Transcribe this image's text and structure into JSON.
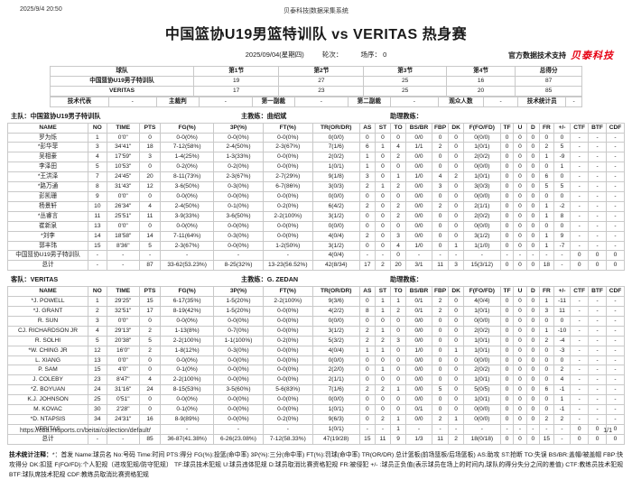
{
  "page": {
    "printed_at": "2025/9/4 20:50",
    "system_title": "贝泰科技|数据采集系统",
    "match_title": "中国篮协U19男篮特训队 vs VERITAS 热身赛",
    "date": "2025/09/04(星期四)",
    "round_label": "轮次：",
    "order_label": "场序： 0",
    "support_label": "官方数据技术支持",
    "brand": "贝泰科技",
    "brand_color": "#e60012",
    "footer_url": "https://cba.misports.cn/beitai/collection/default/",
    "page_num": "1/1"
  },
  "score_table": {
    "headers": [
      "球队",
      "第1节",
      "第2节",
      "第3节",
      "第4节",
      "总得分"
    ],
    "rows": [
      [
        "中国篮协U19男子特训队",
        "19",
        "27",
        "25",
        "16",
        "87"
      ],
      [
        "VERITAS",
        "17",
        "23",
        "25",
        "20",
        "85"
      ]
    ],
    "officials": [
      "技术代表",
      "-",
      "主裁判",
      "-",
      "第一副裁",
      "-",
      "第二副裁",
      "-",
      "观众人数",
      "-",
      "技术统计员",
      "-"
    ]
  },
  "stat_headers": [
    "NAME",
    "NO",
    "TIME",
    "PTS",
    "FG(%)",
    "3P(%)",
    "FT(%)",
    "TR(OR/DR)",
    "AS",
    "ST",
    "TO",
    "BS/BR",
    "FBP",
    "DK",
    "F(FO/FD)",
    "TF",
    "U",
    "D",
    "FR",
    "+/-",
    "CTF",
    "BTF",
    "CDF"
  ],
  "home": {
    "side_label": "主队：",
    "team": "中国篮协U19男子特训队",
    "coach_label": "主教练：",
    "coach": "曲绍斌",
    "assistant_label": "助理教练：",
    "rows": [
      [
        "罗为烁",
        "1",
        "0'0\"",
        "0",
        "0-0(0%)",
        "0-0(0%)",
        "0-0(0%)",
        "0(0/0)",
        "0",
        "0",
        "0",
        "0/0",
        "0",
        "0",
        "0(0/0)",
        "0",
        "0",
        "0",
        "0",
        "0",
        "-",
        "-",
        "-"
      ],
      [
        "*彭华菲",
        "3",
        "34'41\"",
        "18",
        "7-12(58%)",
        "2-4(50%)",
        "2-3(67%)",
        "7(1/6)",
        "6",
        "1",
        "4",
        "1/1",
        "2",
        "0",
        "1(0/1)",
        "0",
        "0",
        "0",
        "2",
        "5",
        "-",
        "-",
        "-"
      ],
      [
        "吴相豪",
        "4",
        "17'59\"",
        "3",
        "1-4(25%)",
        "1-3(33%)",
        "0-0(0%)",
        "2(0/2)",
        "1",
        "0",
        "2",
        "0/0",
        "0",
        "0",
        "2(0/2)",
        "0",
        "0",
        "0",
        "1",
        "-9",
        "-",
        "-",
        "-"
      ],
      [
        "李泽田",
        "5",
        "10'53\"",
        "0",
        "0-2(0%)",
        "0-2(0%)",
        "0-0(0%)",
        "1(0/1)",
        "1",
        "0",
        "0",
        "0/0",
        "0",
        "0",
        "0(0/0)",
        "0",
        "0",
        "0",
        "0",
        "1",
        "-",
        "-",
        "-"
      ],
      [
        "*王洪泽",
        "7",
        "24'45\"",
        "20",
        "8-11(73%)",
        "2-3(67%)",
        "2-7(29%)",
        "9(1/8)",
        "3",
        "0",
        "1",
        "1/0",
        "4",
        "2",
        "1(0/1)",
        "0",
        "0",
        "0",
        "6",
        "0",
        "-",
        "-",
        "-"
      ],
      [
        "*路万通",
        "8",
        "31'43\"",
        "12",
        "3-6(50%)",
        "0-3(0%)",
        "6-7(86%)",
        "3(0/3)",
        "2",
        "1",
        "2",
        "0/0",
        "3",
        "0",
        "3(0/3)",
        "0",
        "0",
        "0",
        "5",
        "5",
        "-",
        "-",
        "-"
      ],
      [
        "彭凯珊",
        "9",
        "0'0\"",
        "0",
        "0-0(0%)",
        "0-0(0%)",
        "0-0(0%)",
        "0(0/0)",
        "0",
        "0",
        "0",
        "0/0",
        "0",
        "0",
        "0(0/0)",
        "0",
        "0",
        "0",
        "0",
        "0",
        "-",
        "-",
        "-"
      ],
      [
        "杨景轩",
        "10",
        "26'34\"",
        "4",
        "2-4(50%)",
        "0-1(0%)",
        "0-2(0%)",
        "6(4/2)",
        "2",
        "0",
        "2",
        "0/0",
        "2",
        "0",
        "2(1/1)",
        "0",
        "0",
        "0",
        "1",
        "-2",
        "-",
        "-",
        "-"
      ],
      [
        "*丛睿言",
        "11",
        "25'51\"",
        "11",
        "3-9(33%)",
        "3-6(50%)",
        "2-2(100%)",
        "3(1/2)",
        "0",
        "0",
        "2",
        "0/0",
        "0",
        "0",
        "2(0/2)",
        "0",
        "0",
        "0",
        "1",
        "8",
        "-",
        "-",
        "-"
      ],
      [
        "崔新泉",
        "13",
        "0'0\"",
        "0",
        "0-0(0%)",
        "0-0(0%)",
        "0-0(0%)",
        "0(0/0)",
        "0",
        "0",
        "0",
        "0/0",
        "0",
        "0",
        "0(0/0)",
        "0",
        "0",
        "0",
        "0",
        "0",
        "-",
        "-",
        "-"
      ],
      [
        "*刘李",
        "14",
        "18'58\"",
        "14",
        "7-11(64%)",
        "0-3(0%)",
        "0-0(0%)",
        "4(0/4)",
        "2",
        "0",
        "3",
        "0/0",
        "0",
        "0",
        "3(1/2)",
        "0",
        "0",
        "0",
        "1",
        "9",
        "-",
        "-",
        "-"
      ],
      [
        "郭丰玮",
        "15",
        "8'36\"",
        "5",
        "2-3(67%)",
        "0-0(0%)",
        "1-2(50%)",
        "3(1/2)",
        "0",
        "0",
        "4",
        "1/0",
        "0",
        "1",
        "1(1/0)",
        "0",
        "0",
        "0",
        "1",
        "-7",
        "-",
        "-",
        "-"
      ],
      [
        "中国篮协U19男子特训队",
        "-",
        "-",
        "-",
        "-",
        "-",
        "-",
        "4(0/4)",
        "-",
        "-",
        "0",
        "-",
        "-",
        "-",
        "-",
        "-",
        "-",
        "-",
        "-",
        "-",
        "0",
        "0",
        "0"
      ],
      [
        "总计",
        "-",
        "-",
        "87",
        "33-62(53.23%)",
        "8-25(32%)",
        "13-23(56.52%)",
        "42(8/34)",
        "17",
        "2",
        "20",
        "3/1",
        "11",
        "3",
        "15(3/12)",
        "0",
        "0",
        "0",
        "18",
        "-",
        "0",
        "0",
        "0"
      ]
    ]
  },
  "away": {
    "side_label": "客队：",
    "team": "VERITAS",
    "coach_label": "主教练：",
    "coach": "G. ZEDAN",
    "assistant_label": "助理教练：",
    "rows": [
      [
        "*J. POWELL",
        "1",
        "29'25\"",
        "15",
        "6-17(35%)",
        "1-5(20%)",
        "2-2(100%)",
        "9(3/6)",
        "0",
        "1",
        "1",
        "0/1",
        "2",
        "0",
        "4(0/4)",
        "0",
        "0",
        "0",
        "1",
        "-11",
        "-",
        "-",
        "-"
      ],
      [
        "*J. GRANT",
        "2",
        "32'51\"",
        "17",
        "8-19(42%)",
        "1-5(20%)",
        "0-0(0%)",
        "4(2/2)",
        "8",
        "1",
        "2",
        "0/1",
        "2",
        "0",
        "1(0/1)",
        "0",
        "0",
        "0",
        "3",
        "11",
        "-",
        "-",
        "-"
      ],
      [
        "R. SUN",
        "3",
        "0'0\"",
        "0",
        "0-0(0%)",
        "0-0(0%)",
        "0-0(0%)",
        "0(0/0)",
        "0",
        "0",
        "0",
        "0/0",
        "0",
        "0",
        "0(0/0)",
        "0",
        "0",
        "0",
        "0",
        "0",
        "-",
        "-",
        "-"
      ],
      [
        "CJ. RICHARDSON JR",
        "4",
        "29'13\"",
        "2",
        "1-13(8%)",
        "0-7(0%)",
        "0-0(0%)",
        "3(1/2)",
        "2",
        "1",
        "0",
        "0/0",
        "0",
        "0",
        "2(0/2)",
        "0",
        "0",
        "0",
        "1",
        "-10",
        "-",
        "-",
        "-"
      ],
      [
        "R. SOLHI",
        "5",
        "20'38\"",
        "5",
        "2-2(100%)",
        "1-1(100%)",
        "0-2(0%)",
        "5(3/2)",
        "2",
        "2",
        "3",
        "0/0",
        "0",
        "0",
        "1(0/1)",
        "0",
        "0",
        "0",
        "2",
        "-4",
        "-",
        "-",
        "-"
      ],
      [
        "*W. CHING JR",
        "12",
        "16'0\"",
        "2",
        "1-8(12%)",
        "0-3(0%)",
        "0-0(0%)",
        "4(0/4)",
        "1",
        "1",
        "0",
        "1/0",
        "0",
        "1",
        "1(0/1)",
        "0",
        "0",
        "0",
        "0",
        "-3",
        "-",
        "-",
        "-"
      ],
      [
        "L. XIANG",
        "13",
        "0'0\"",
        "0",
        "0-0(0%)",
        "0-0(0%)",
        "0-0(0%)",
        "0(0/0)",
        "0",
        "0",
        "0",
        "0/0",
        "0",
        "0",
        "0(0/0)",
        "0",
        "0",
        "0",
        "0",
        "0",
        "-",
        "-",
        "-"
      ],
      [
        "P. SAM",
        "15",
        "4'0\"",
        "0",
        "0-1(0%)",
        "0-0(0%)",
        "0-0(0%)",
        "2(2/0)",
        "0",
        "1",
        "0",
        "0/0",
        "0",
        "0",
        "2(0/2)",
        "0",
        "0",
        "0",
        "0",
        "2",
        "-",
        "-",
        "-"
      ],
      [
        "J. COLEBY",
        "23",
        "8'47\"",
        "4",
        "2-2(100%)",
        "0-0(0%)",
        "0-0(0%)",
        "2(1/1)",
        "0",
        "0",
        "0",
        "0/0",
        "0",
        "0",
        "1(0/1)",
        "0",
        "0",
        "0",
        "0",
        "4",
        "-",
        "-",
        "-"
      ],
      [
        "*Z. BOYUAN",
        "24",
        "31'16\"",
        "24",
        "8-15(53%)",
        "3-5(60%)",
        "5-6(83%)",
        "7(1/6)",
        "2",
        "2",
        "1",
        "0/0",
        "5",
        "0",
        "5(0/5)",
        "0",
        "0",
        "0",
        "6",
        "-1",
        "-",
        "-",
        "-"
      ],
      [
        "K.J. JOHNSON",
        "25",
        "0'51\"",
        "0",
        "0-0(0%)",
        "0-0(0%)",
        "0-0(0%)",
        "0(0/0)",
        "0",
        "0",
        "0",
        "0/0",
        "0",
        "0",
        "1(0/1)",
        "0",
        "0",
        "0",
        "0",
        "1",
        "-",
        "-",
        "-"
      ],
      [
        "M. KOVAC",
        "30",
        "2'28\"",
        "0",
        "0-1(0%)",
        "0-0(0%)",
        "0-0(0%)",
        "1(0/1)",
        "0",
        "0",
        "0",
        "0/1",
        "0",
        "0",
        "0(0/0)",
        "0",
        "0",
        "0",
        "0",
        "-1",
        "-",
        "-",
        "-"
      ],
      [
        "*D. NTAPSIS",
        "34",
        "24'31\"",
        "16",
        "8-9(89%)",
        "0-0(0%)",
        "0-2(0%)",
        "9(6/3)",
        "0",
        "2",
        "1",
        "0/0",
        "2",
        "1",
        "0(0/0)",
        "0",
        "0",
        "0",
        "2",
        "2",
        "-",
        "-",
        "-"
      ],
      [
        "VERITAS",
        "-",
        "-",
        "-",
        "-",
        "-",
        "-",
        "1(0/1)",
        "-",
        "-",
        "1",
        "-",
        "-",
        "-",
        "-",
        "-",
        "-",
        "-",
        "-",
        "-",
        "0",
        "0",
        "0"
      ],
      [
        "总计",
        "-",
        "-",
        "85",
        "36-87(41.38%)",
        "6-26(23.08%)",
        "7-12(58.33%)",
        "47(19/28)",
        "15",
        "11",
        "9",
        "1/3",
        "11",
        "2",
        "18(0/18)",
        "0",
        "0",
        "0",
        "15",
        "-",
        "0",
        "0",
        "0"
      ]
    ]
  },
  "legend": {
    "label": "技术统计注释：",
    "text": "*：首发 Name:球员名 No:号码 Time:时间 PTS:得分 FG(%):投篮(命中率) 3P(%):三分(命中率) FT(%):罚球(命中率) TR(OR/DR) 总计篮板(前场篮板/后场篮板) AS:助攻 ST:抢断 TO:失误 BS/BR:盖帽/被盖帽 FBP:快攻得分 DK:扣篮 F(FO/FD):个人犯规（进攻犯规/防守犯规） TF:球员技术犯规 U:球员违体犯规 D:球员取消比赛资格犯规 FR:被侵犯 +/- :球员正负值(表示球员在场上的时间内,球队的得分失分之间的差值) CTF:教练员技术犯规 BTF:球队席技术犯规 CDF:教练员取消比赛资格犯规"
  }
}
